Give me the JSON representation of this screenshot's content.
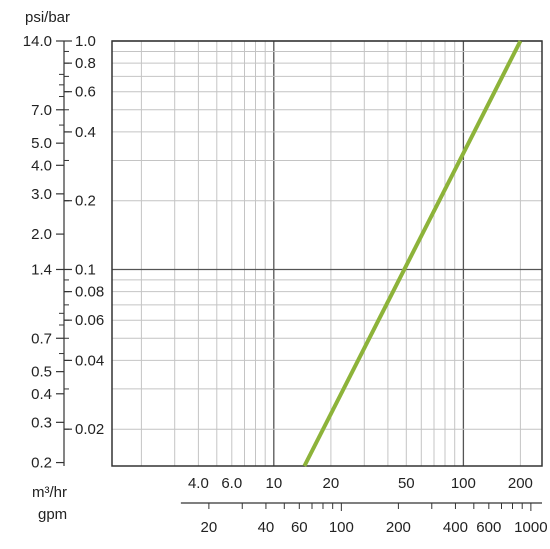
{
  "chart_data": {
    "type": "line",
    "title": "",
    "y_unit_label": "psi/bar",
    "x_unit_label_top": "m³/hr",
    "x_unit_label_bottom": "gpm",
    "y_scale": "log",
    "x_scale": "log",
    "y_range_bar": [
      0.0138,
      1.0
    ],
    "x_range_m3hr": [
      1.4,
      260
    ],
    "grid": true,
    "psi_ticks": [
      "14.0",
      "7.0",
      "5.0",
      "4.0",
      "3.0",
      "2.0",
      "1.4",
      "0.7",
      "0.5",
      "0.4",
      "0.3",
      "0.2"
    ],
    "bar_ticks": [
      "1.0",
      "0.8",
      "0.6",
      "0.4",
      "0.2",
      "0.1",
      "0.08",
      "0.06",
      "0.04",
      "0.02"
    ],
    "m3hr_ticks": [
      "4.0",
      "6.0",
      "10",
      "20",
      "50",
      "100",
      "200"
    ],
    "gpm_ticks": [
      "20",
      "40",
      "60",
      "100",
      "200",
      "400",
      "600",
      "1000"
    ],
    "series": [
      {
        "color": "#8db33a",
        "x_m3hr": [
          14.5,
          200
        ],
        "y_bar": [
          0.0138,
          1.0
        ]
      }
    ]
  }
}
